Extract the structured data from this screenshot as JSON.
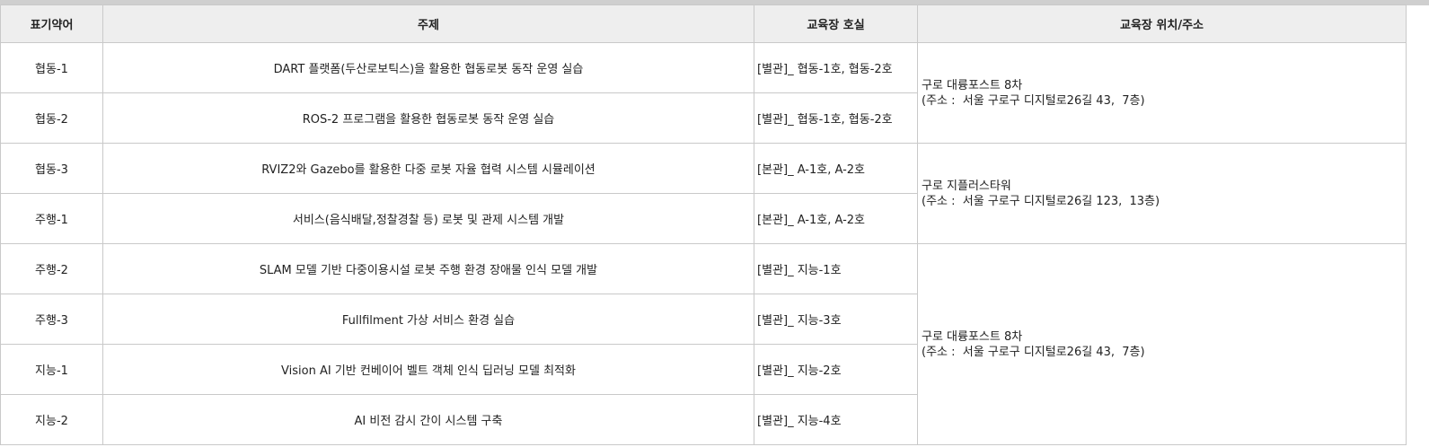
{
  "headers": {
    "abbr": "표기약어",
    "topic": "주제",
    "room": "교육장 호실",
    "location": "교육장 위치/주소"
  },
  "rows": [
    {
      "abbr": "협동-1",
      "topic": "DART 플랫폼(두산로보틱스)을 활용한 협동로봇 동작 운영 실습",
      "room": "[별관]_ 협동-1호,  협동-2호"
    },
    {
      "abbr": "협동-2",
      "topic": "ROS-2 프로그램을 활용한 협동로봇 동작 운영 실습",
      "room": "[별관]_ 협동-1호,  협동-2호"
    },
    {
      "abbr": "협동-3",
      "topic": "RVIZ2와 Gazebo를 활용한 다중 로봇 자율 협력 시스템 시뮬레이션",
      "room": "[본관]_ A-1호, A-2호"
    },
    {
      "abbr": "주행-1",
      "topic": "서비스(음식배달,정찰경찰 등) 로봇 및 관제 시스템 개발",
      "room": "[본관]_ A-1호, A-2호"
    },
    {
      "abbr": "주행-2",
      "topic": "SLAM 모델 기반 다중이용시설 로봇 주행 환경 장애물 인식 모델 개발",
      "room": "[별관]_ 지능-1호"
    },
    {
      "abbr": "주행-3",
      "topic": "Fullfilment 가상 서비스 환경 실습",
      "room": "[별관]_ 지능-3호"
    },
    {
      "abbr": "지능-1",
      "topic": "Vision AI 기반 컨베이어 벨트 객체 인식 딥러닝 모델 최적화",
      "room": "[별관]_ 지능-2호"
    },
    {
      "abbr": "지능-2",
      "topic": "AI 비전 감시 간이 시스템 구축",
      "room": "[별관]_ 지능-4호"
    }
  ],
  "locations": [
    {
      "name": "구로 대륭포스트 8차",
      "address": "(주소 :  서울 구로구 디지털로26길 43,  7층)"
    },
    {
      "name": "구로 지플러스타워",
      "address": "(주소 :  서울 구로구 디지털로26길 123,  13층)"
    },
    {
      "name": "구로 대륭포스트 8차",
      "address": "(주소 :  서울 구로구 디지털로26길 43,  7층)"
    }
  ]
}
